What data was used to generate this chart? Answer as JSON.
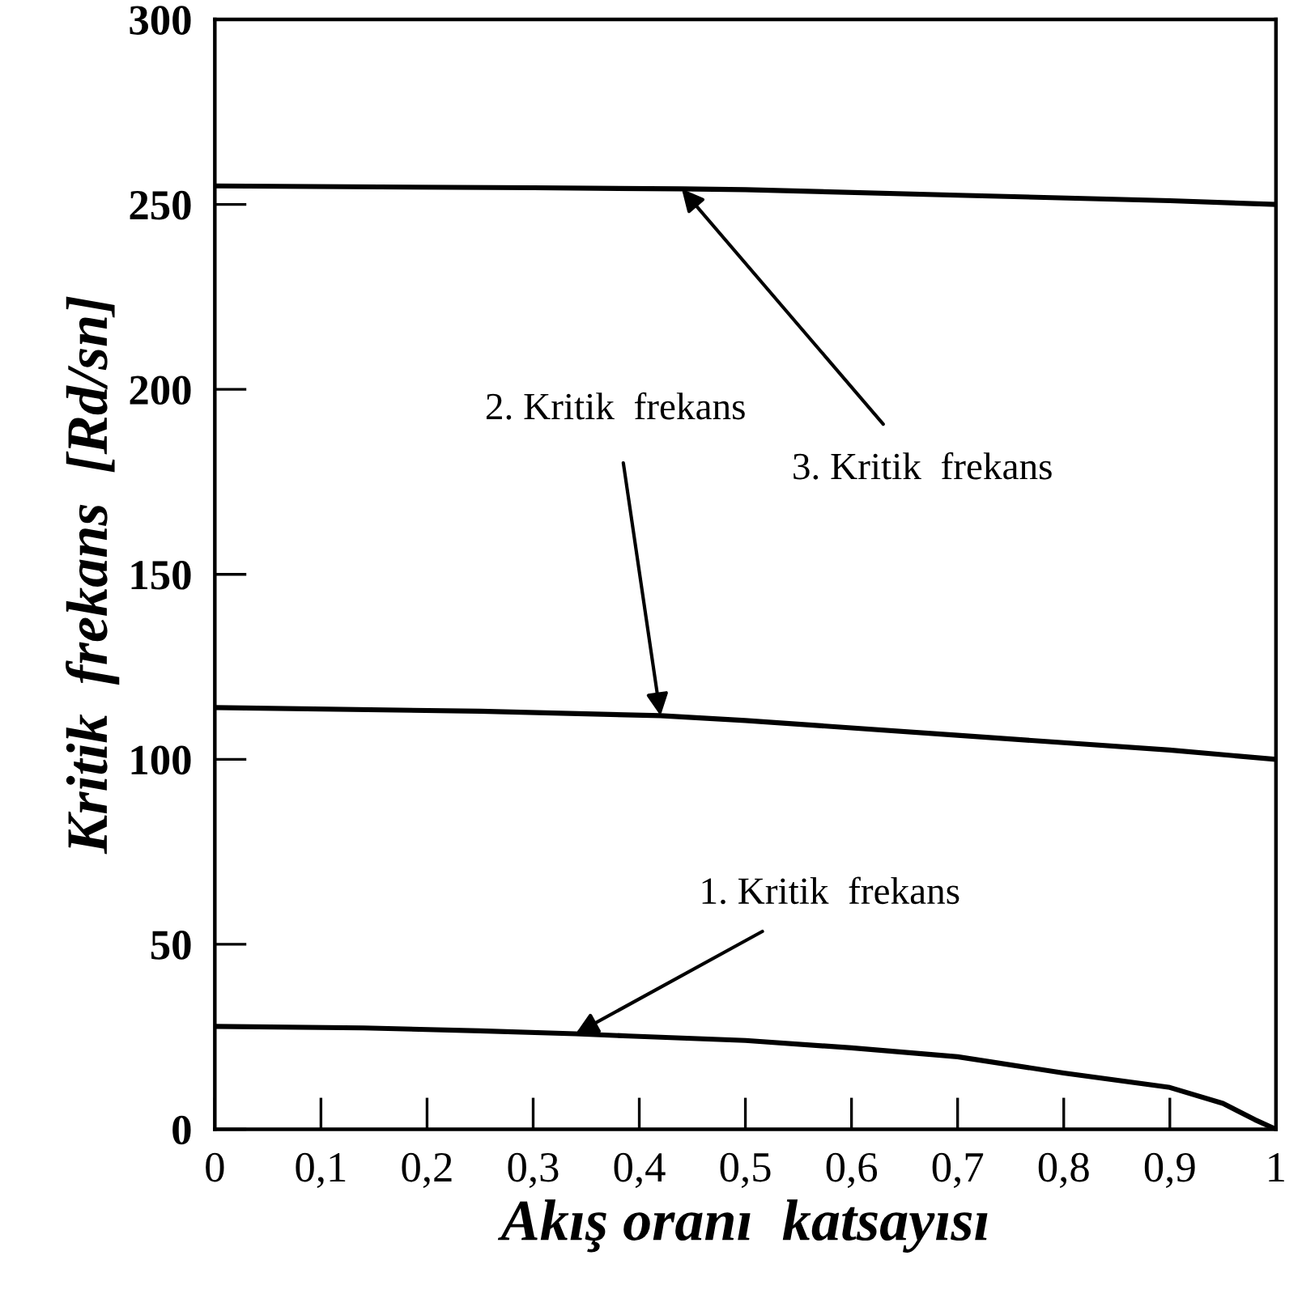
{
  "chart_data": {
    "type": "line",
    "xlabel": "Akış oranı  katsayısı",
    "ylabel": "Kritik  frekans  [Rd/sn]",
    "xlim": [
      0,
      1
    ],
    "ylim": [
      0,
      300
    ],
    "xticks": [
      0,
      {
        "value": 0.1,
        "label": "0,1"
      },
      {
        "value": 0.2,
        "label": "0,2"
      },
      {
        "value": 0.3,
        "label": "0,3"
      },
      {
        "value": 0.4,
        "label": "0,4"
      },
      {
        "value": 0.5,
        "label": "0,5"
      },
      {
        "value": 0.6,
        "label": "0,6"
      },
      {
        "value": 0.7,
        "label": "0,7"
      },
      {
        "value": 0.8,
        "label": "0,8"
      },
      {
        "value": 0.9,
        "label": "0,9"
      },
      1
    ],
    "yticks": [
      0,
      50,
      100,
      150,
      200,
      250,
      300
    ],
    "grid": false,
    "legend": false,
    "series": [
      {
        "color": "#000000",
        "x": [
          0,
          0.14,
          0.25,
          0.34,
          0.39,
          0.5,
          0.6,
          0.7,
          0.8,
          0.9,
          0.95,
          0.98,
          1
        ],
        "values": [
          27.8,
          27.4,
          26.6,
          25.8,
          25.2,
          24,
          22,
          19.6,
          15.2,
          11.3,
          7,
          2.6,
          0
        ]
      },
      {
        "color": "#000000",
        "x": [
          0,
          0.25,
          0.42,
          0.5,
          0.6,
          0.7,
          0.8,
          0.9,
          1
        ],
        "values": [
          114,
          113,
          111.8,
          110.5,
          108.5,
          106.5,
          104.5,
          102.5,
          100
        ]
      },
      {
        "color": "#000000",
        "x": [
          0,
          0.3,
          0.44,
          0.5,
          0.7,
          0.9,
          1
        ],
        "values": [
          255,
          254.5,
          254.2,
          254,
          252.5,
          251,
          250
        ]
      }
    ],
    "annotations": [
      {
        "text": "3. Kritik  frekans",
        "x": 0.44,
        "y": 254.2
      },
      {
        "text": "2. Kritik  frekans",
        "x": 0.42,
        "y": 111.8
      },
      {
        "text": "1. Kritik  frekans",
        "x": 0.34,
        "y": 25.8
      }
    ]
  }
}
